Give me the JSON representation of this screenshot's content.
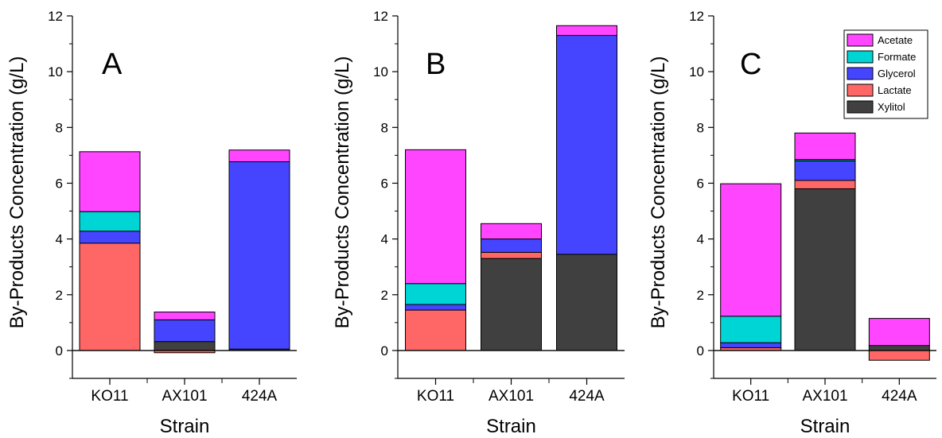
{
  "chart_data": [
    {
      "type": "bar",
      "stacked": true,
      "panel_label": "A",
      "categories": [
        "KO11",
        "AX101",
        "424A"
      ],
      "xlabel": "Strain",
      "ylabel": "By-Products Concentration (g/L)",
      "ylim": [
        -1,
        12
      ],
      "yticks": [
        "0",
        "2",
        "4",
        "6",
        "8",
        "10",
        "12"
      ],
      "series": [
        {
          "name": "Lactate",
          "color": "#ff6666",
          "values": [
            3.85,
            -0.08,
            0.0
          ]
        },
        {
          "name": "Xylitol",
          "color": "#404040",
          "values": [
            0.0,
            0.32,
            0.05
          ]
        },
        {
          "name": "Glycerol",
          "color": "#4545ff",
          "values": [
            0.43,
            0.78,
            6.72
          ]
        },
        {
          "name": "Formate",
          "color": "#00d5d5",
          "values": [
            0.7,
            0.0,
            0.0
          ]
        },
        {
          "name": "Acetate",
          "color": "#ff45ff",
          "values": [
            2.15,
            0.28,
            0.42
          ]
        }
      ],
      "legend": false
    },
    {
      "type": "bar",
      "stacked": true,
      "panel_label": "B",
      "categories": [
        "KO11",
        "AX101",
        "424A"
      ],
      "xlabel": "Strain",
      "ylabel": "By-Products Concentration (g/L)",
      "ylim": [
        -1,
        12
      ],
      "yticks": [
        "0",
        "2",
        "4",
        "6",
        "8",
        "10",
        "12"
      ],
      "series": [
        {
          "name": "Lactate",
          "color": "#ff6666",
          "values": [
            1.45,
            0.0,
            0.0
          ]
        },
        {
          "name": "Xylitol",
          "color": "#404040",
          "values": [
            0.0,
            3.3,
            3.45
          ]
        },
        {
          "name": "Lactate",
          "color": "#ff6666",
          "values": [
            0.0,
            0.22,
            0.0
          ]
        },
        {
          "name": "Glycerol",
          "color": "#4545ff",
          "values": [
            0.2,
            0.48,
            7.85
          ]
        },
        {
          "name": "Formate",
          "color": "#00d5d5",
          "values": [
            0.75,
            0.0,
            0.0
          ]
        },
        {
          "name": "Acetate",
          "color": "#ff45ff",
          "values": [
            4.8,
            0.55,
            0.35
          ]
        }
      ],
      "legend": false
    },
    {
      "type": "bar",
      "stacked": true,
      "panel_label": "C",
      "categories": [
        "KO11",
        "AX101",
        "424A"
      ],
      "xlabel": "Strain",
      "ylabel": "By-Products Concentration (g/L)",
      "ylim": [
        -1,
        12
      ],
      "yticks": [
        "0",
        "2",
        "4",
        "6",
        "8",
        "10",
        "12"
      ],
      "series": [
        {
          "name": "Lactate",
          "color": "#ff6666",
          "values": [
            0.1,
            0.0,
            -0.35
          ]
        },
        {
          "name": "Xylitol",
          "color": "#404040",
          "values": [
            0.0,
            5.8,
            0.18
          ]
        },
        {
          "name": "Lactate",
          "color": "#ff6666",
          "values": [
            0.0,
            0.3,
            0.0
          ]
        },
        {
          "name": "Glycerol",
          "color": "#4545ff",
          "values": [
            0.18,
            0.7,
            0.0
          ]
        },
        {
          "name": "Formate",
          "color": "#00d5d5",
          "values": [
            0.95,
            0.05,
            0.0
          ]
        },
        {
          "name": "Acetate",
          "color": "#ff45ff",
          "values": [
            4.75,
            0.95,
            0.97
          ]
        }
      ],
      "legend": true,
      "legend_position": "top-right",
      "legend_entries": [
        {
          "name": "Acetate",
          "color": "#ff45ff"
        },
        {
          "name": "Formate",
          "color": "#00d5d5"
        },
        {
          "name": "Glycerol",
          "color": "#4545ff"
        },
        {
          "name": "Lactate",
          "color": "#ff6666"
        },
        {
          "name": "Xylitol",
          "color": "#404040"
        }
      ]
    }
  ]
}
